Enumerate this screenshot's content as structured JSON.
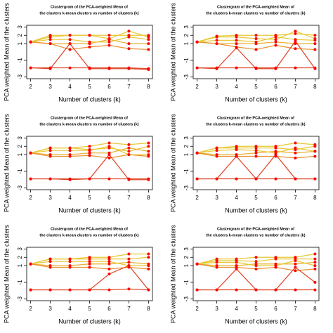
{
  "chart_data": [
    {
      "type": "line",
      "title": "Clustergram of the PCA-weighted Mean of",
      "subtitle": "the clusters k-mean clusters vs number of clusters (k)",
      "x_label": "Number of clusters (k)",
      "y_label": "PCA weighted Mean of the clusters",
      "x": [
        2,
        3,
        4,
        5,
        6,
        7,
        8
      ],
      "xlim": [
        1.8,
        8.2
      ],
      "xticks": [
        2,
        3,
        4,
        5,
        6,
        7,
        8
      ],
      "ylim": [
        -3.2,
        3.2
      ],
      "yticks": [
        -3,
        -1,
        1,
        2,
        3
      ],
      "point_color": "#ff0000",
      "series": [
        {
          "color": "#e8c832",
          "values": [
            1.2,
            2,
            2,
            2,
            2,
            2,
            2
          ]
        },
        {
          "color": "#e8c832",
          "values": [
            1.2,
            1.8,
            2,
            2,
            1.6,
            2.5,
            1.8
          ]
        },
        {
          "color": "#e8b030",
          "values": [
            1.2,
            1,
            1,
            1,
            1.5,
            1,
            1
          ]
        },
        {
          "color": "#e89030",
          "values": [
            1.2,
            1,
            0.3,
            0.6,
            0.8,
            0.4,
            0.3
          ]
        },
        {
          "color": "#e8c832",
          "values": [
            1.2,
            1.5,
            1.5,
            1.2,
            1.2,
            1.8,
            1.5
          ]
        },
        {
          "color": "#e04020",
          "values": [
            -1.9,
            -1.9,
            -1.9,
            -1.9,
            -1.9,
            -1.9,
            -2
          ]
        },
        {
          "color": "#e04020",
          "values": [
            -1.9,
            -2,
            1,
            -2,
            -2,
            -2,
            -2.1
          ]
        }
      ]
    },
    {
      "type": "line",
      "title": "Clustergram of the PCA-weighted Mean of",
      "subtitle": "the clusters k-mean clusters vs number of clusters (k)",
      "x_label": "Number of clusters (k)",
      "y_label": "PCA weighted Mean of the clusters",
      "x": [
        2,
        3,
        4,
        5,
        6,
        7,
        8
      ],
      "xlim": [
        1.8,
        8.2
      ],
      "xticks": [
        2,
        3,
        4,
        5,
        6,
        7,
        8
      ],
      "ylim": [
        -3.2,
        3.2
      ],
      "yticks": [
        -3,
        -1,
        1,
        2,
        3
      ],
      "point_color": "#ff0000",
      "series": [
        {
          "color": "#e8c832",
          "values": [
            1.2,
            1.9,
            2,
            2,
            2,
            2.2,
            2
          ]
        },
        {
          "color": "#e8c832",
          "values": [
            1.2,
            1.8,
            1.8,
            1.6,
            1.5,
            2.5,
            1.6
          ]
        },
        {
          "color": "#e8b030",
          "values": [
            1.2,
            1,
            1,
            1,
            1.2,
            1,
            1
          ]
        },
        {
          "color": "#e89030",
          "values": [
            1.2,
            1,
            0.6,
            0.3,
            0.8,
            0.4,
            0.3
          ]
        },
        {
          "color": "#e8c832",
          "values": [
            1.2,
            1.4,
            1.4,
            1.2,
            1.8,
            1.5,
            1.4
          ]
        },
        {
          "color": "#e04020",
          "values": [
            -1.9,
            -1.9,
            -1.9,
            -1.9,
            -1.9,
            -1.9,
            -1.9
          ]
        },
        {
          "color": "#e04020",
          "values": [
            -1.9,
            -2,
            0.5,
            -2,
            -2,
            1.3,
            -2
          ]
        }
      ]
    },
    {
      "type": "line",
      "title": "Clustergram of the PCA-weighted Mean of",
      "subtitle": "the clusters k-mean clusters vs number of clusters (k)",
      "x_label": "Number of clusters (k)",
      "y_label": "PCA weighted Mean of the clusters",
      "x": [
        2,
        3,
        4,
        5,
        6,
        7,
        8
      ],
      "xlim": [
        1.8,
        8.2
      ],
      "xticks": [
        2,
        3,
        4,
        5,
        6,
        7,
        8
      ],
      "ylim": [
        -3.2,
        3.2
      ],
      "yticks": [
        -3,
        -1,
        1,
        2,
        3
      ],
      "point_color": "#ff0000",
      "series": [
        {
          "color": "#e8c832",
          "values": [
            1.2,
            1.8,
            1.8,
            2,
            2.4,
            2.2,
            2.4
          ]
        },
        {
          "color": "#e8c832",
          "values": [
            1.2,
            1.8,
            1.8,
            1.6,
            1.8,
            1.4,
            2
          ]
        },
        {
          "color": "#e8b030",
          "values": [
            1.2,
            1,
            1,
            1.2,
            1.2,
            1.8,
            1.4
          ]
        },
        {
          "color": "#e89030",
          "values": [
            1.2,
            0.8,
            0.8,
            0.9,
            0.6,
            1,
            0.8
          ]
        },
        {
          "color": "#e8c832",
          "values": [
            1.2,
            1.5,
            1.5,
            1.5,
            2,
            1,
            1
          ]
        },
        {
          "color": "#e04020",
          "values": [
            -1.9,
            -1.9,
            -1.9,
            -1.9,
            -1.9,
            -1.9,
            -1.9
          ]
        },
        {
          "color": "#e04020",
          "values": [
            -1.9,
            -1.9,
            -2,
            -1.9,
            1,
            -2,
            -2
          ]
        }
      ]
    },
    {
      "type": "line",
      "title": "Clustergram of the PCA-weighted Mean of",
      "subtitle": "the clusters k-mean clusters vs number of clusters (k)",
      "x_label": "Number of clusters (k)",
      "y_label": "PCA weighted Mean of the clusters",
      "x": [
        2,
        3,
        4,
        5,
        6,
        7,
        8
      ],
      "xlim": [
        1.8,
        8.2
      ],
      "xticks": [
        2,
        3,
        4,
        5,
        6,
        7,
        8
      ],
      "ylim": [
        -3.2,
        3.2
      ],
      "yticks": [
        -3,
        -1,
        1,
        2,
        3
      ],
      "point_color": "#ff0000",
      "series": [
        {
          "color": "#e8c832",
          "values": [
            1.2,
            1.8,
            2,
            2,
            2,
            2.4,
            2.2
          ]
        },
        {
          "color": "#e8c832",
          "values": [
            1.2,
            1.8,
            1.8,
            1.8,
            1.8,
            1.6,
            2
          ]
        },
        {
          "color": "#e8b030",
          "values": [
            1.2,
            1,
            1,
            1.2,
            1.4,
            1.2,
            1.4
          ]
        },
        {
          "color": "#e89030",
          "values": [
            1.2,
            0.8,
            0.8,
            0.8,
            0.8,
            0.6,
            0.8
          ]
        },
        {
          "color": "#e8c832",
          "values": [
            1.2,
            1.5,
            1.6,
            1.5,
            1.2,
            1.8,
            1.4
          ]
        },
        {
          "color": "#e04020",
          "values": [
            -1.9,
            -1.9,
            -1.9,
            -1.9,
            -1.9,
            -1.9,
            -1.9
          ]
        },
        {
          "color": "#e04020",
          "values": [
            -1.9,
            -1.9,
            0.8,
            -1.9,
            1,
            -1.9,
            -1.9
          ]
        }
      ]
    },
    {
      "type": "line",
      "title": "Clustergram of the PCA-weighted Mean of",
      "subtitle": "the clusters k-mean clusters vs number of clusters (k)",
      "x_label": "Number of clusters (k)",
      "y_label": "PCA weighted Mean of the clusters",
      "x": [
        2,
        3,
        4,
        5,
        6,
        7,
        8
      ],
      "xlim": [
        1.8,
        8.2
      ],
      "xticks": [
        2,
        3,
        4,
        5,
        6,
        7,
        8
      ],
      "ylim": [
        -3.2,
        3.2
      ],
      "yticks": [
        -3,
        -1,
        1,
        2,
        3
      ],
      "point_color": "#ff0000",
      "series": [
        {
          "color": "#e8c832",
          "values": [
            1.2,
            1.8,
            1.8,
            2,
            2,
            2.4,
            2.4
          ]
        },
        {
          "color": "#e8c832",
          "values": [
            1.2,
            1.8,
            1.8,
            1.8,
            1.8,
            1.8,
            2
          ]
        },
        {
          "color": "#e8b030",
          "values": [
            1.2,
            1,
            1,
            1.2,
            1.2,
            1.4,
            1.2
          ]
        },
        {
          "color": "#e89030",
          "values": [
            1.2,
            0.8,
            0.8,
            0.8,
            0.6,
            0.8,
            0.6
          ]
        },
        {
          "color": "#e8c832",
          "values": [
            1.2,
            1.5,
            1.5,
            1.5,
            1.5,
            1,
            1
          ]
        },
        {
          "color": "#e04020",
          "values": [
            -1.9,
            -1.9,
            -1.9,
            -1.9,
            -1.9,
            -1.8,
            -1.9
          ]
        },
        {
          "color": "#e04020",
          "values": [
            -1.9,
            -1.9,
            -1.9,
            -1.9,
            0,
            1,
            -1.9
          ]
        }
      ]
    },
    {
      "type": "line",
      "title": "Clustergram of the PCA-weighted Mean of",
      "subtitle": "the clusters k-mean clusters vs number of clusters (k)",
      "x_label": "Number of clusters (k)",
      "y_label": "PCA weighted Mean of the clusters",
      "x": [
        2,
        3,
        4,
        5,
        6,
        7,
        8
      ],
      "xlim": [
        1.8,
        8.2
      ],
      "xticks": [
        2,
        3,
        4,
        5,
        6,
        7,
        8
      ],
      "ylim": [
        -3.2,
        3.2
      ],
      "yticks": [
        -3,
        -1,
        1,
        2,
        3
      ],
      "point_color": "#ff0000",
      "series": [
        {
          "color": "#e8c832",
          "values": [
            1.2,
            1.8,
            1.8,
            2,
            2,
            2,
            2.4
          ]
        },
        {
          "color": "#e8c832",
          "values": [
            1.2,
            1.6,
            1.6,
            1.5,
            1.8,
            1.8,
            1.8
          ]
        },
        {
          "color": "#e8b030",
          "values": [
            1.2,
            1,
            1,
            1.2,
            1.2,
            1.2,
            1.4
          ]
        },
        {
          "color": "#e89030",
          "values": [
            1.2,
            0.8,
            0.8,
            0.6,
            0.8,
            0.4,
            0.6
          ]
        },
        {
          "color": "#e8c832",
          "values": [
            1.2,
            1.4,
            1.4,
            1,
            1,
            1.6,
            1
          ]
        },
        {
          "color": "#e04020",
          "values": [
            -1.9,
            -1.9,
            -1.9,
            -1.9,
            -1.9,
            -1.9,
            -1.9
          ]
        },
        {
          "color": "#e04020",
          "values": [
            -1.9,
            -1.9,
            0.6,
            -1.9,
            -1.9,
            0.8,
            -1
          ]
        }
      ]
    }
  ]
}
